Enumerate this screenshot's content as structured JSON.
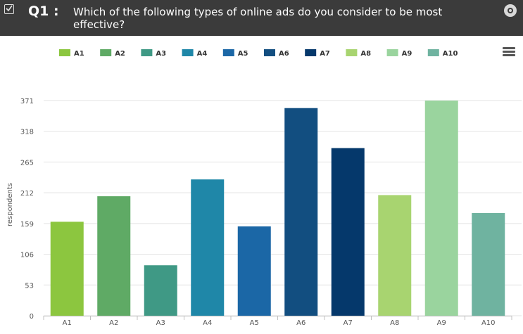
{
  "header": {
    "question_number": "Q1 :",
    "question_text": "Which of the following types of online ads do you consider to be most effective?"
  },
  "icons": {
    "checkbox": "checkbox-icon",
    "options": "disc-icon",
    "menu": "hamburger-menu-icon"
  },
  "chart_data": {
    "type": "bar",
    "categories": [
      "A1",
      "A2",
      "A3",
      "A4",
      "A5",
      "A6",
      "A7",
      "A8",
      "A9",
      "A10"
    ],
    "values": [
      162,
      206,
      87,
      235,
      154,
      358,
      289,
      208,
      371,
      177
    ],
    "colors": [
      "#8cc63f",
      "#5faa65",
      "#3f9985",
      "#1f87a8",
      "#1b67a6",
      "#124e80",
      "#05386b",
      "#a8d470",
      "#9ad49e",
      "#6fb3a0"
    ],
    "ylabel": "respondents",
    "yticks": [
      0,
      53,
      106,
      159,
      212,
      265,
      318,
      371
    ],
    "ylim": [
      0,
      371
    ],
    "legend": [
      "A1",
      "A2",
      "A3",
      "A4",
      "A5",
      "A6",
      "A7",
      "A8",
      "A9",
      "A10"
    ],
    "legend_position": "top",
    "grid": "horizontal"
  }
}
